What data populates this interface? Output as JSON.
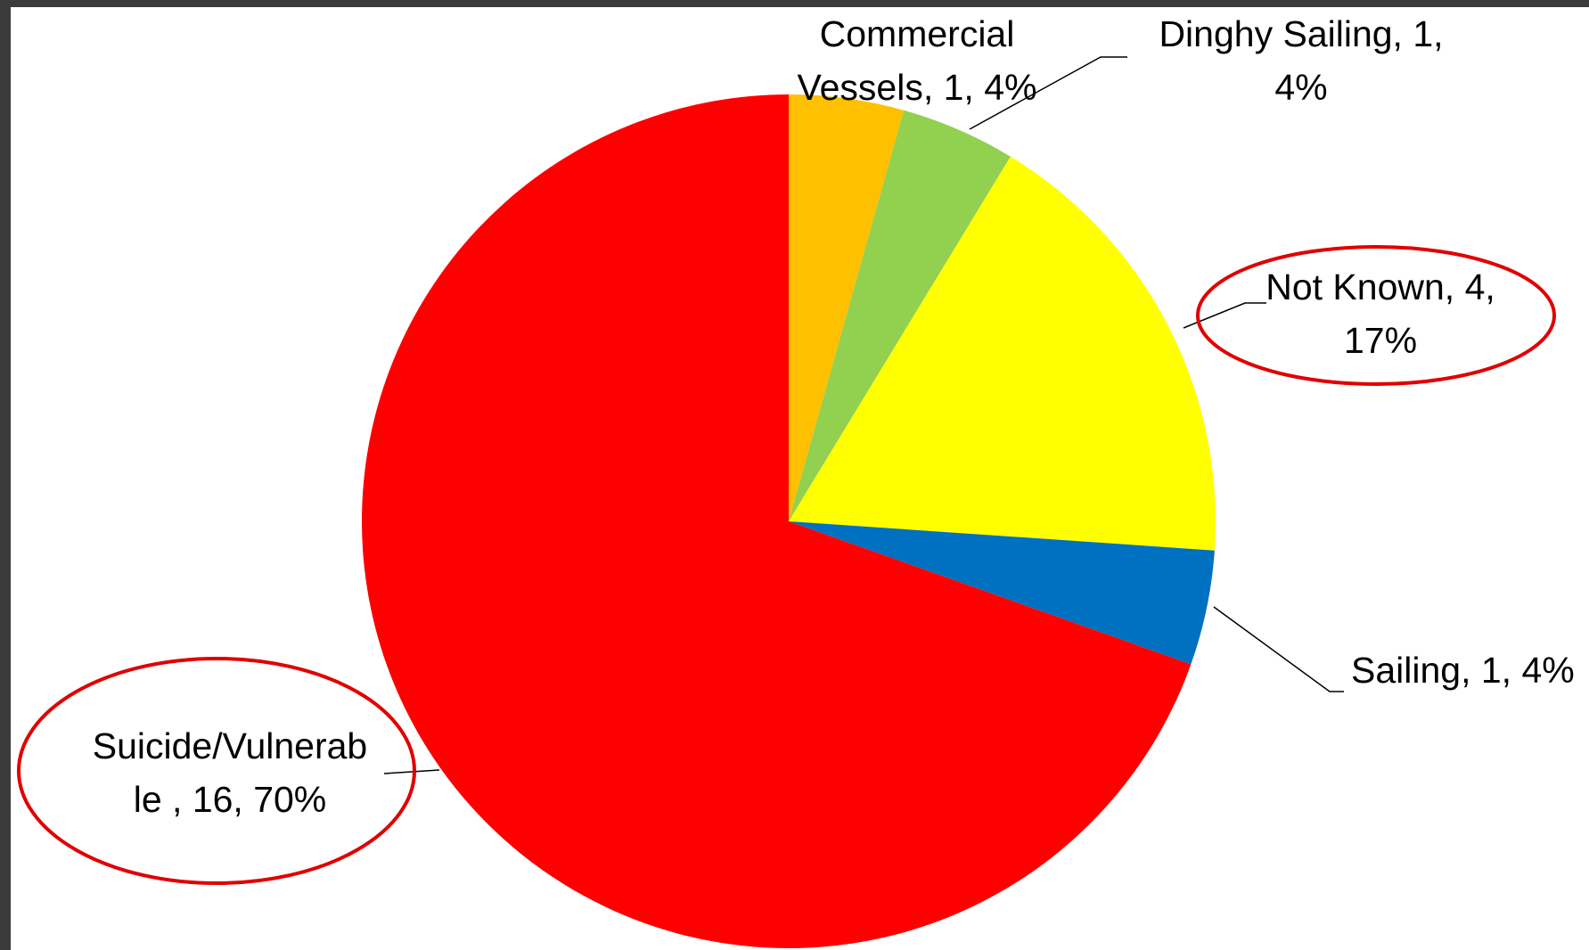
{
  "chart_data": {
    "type": "pie",
    "title": "",
    "start_angle_deg": 0,
    "direction": "clockwise",
    "slices": [
      {
        "category": "Commercial Vessels",
        "value": 1,
        "percent": "4%",
        "color": "#ffc000",
        "label_lines": [
          "Commercial",
          "Vessels, 1, 4%"
        ],
        "circled": false
      },
      {
        "category": "Dinghy Sailing",
        "value": 1,
        "percent": "4%",
        "color": "#92d050",
        "label_lines": [
          "Dinghy Sailing, 1,",
          "4%"
        ],
        "circled": false
      },
      {
        "category": "Not Known",
        "value": 4,
        "percent": "17%",
        "color": "#ffff00",
        "label_lines": [
          "Not Known, 4,",
          "17%"
        ],
        "circled": true
      },
      {
        "category": "Sailing",
        "value": 1,
        "percent": "4%",
        "color": "#0070c0",
        "label_lines": [
          "Sailing, 1, 4%"
        ],
        "circled": false
      },
      {
        "category": "Suicide/Vulnerable",
        "value": 16,
        "percent": "70%",
        "color": "#ff0000",
        "label_lines": [
          "Suicide/Vulnerab",
          "le , 16, 70%"
        ],
        "circled": true
      }
    ],
    "highlight_color": "#e00000"
  }
}
